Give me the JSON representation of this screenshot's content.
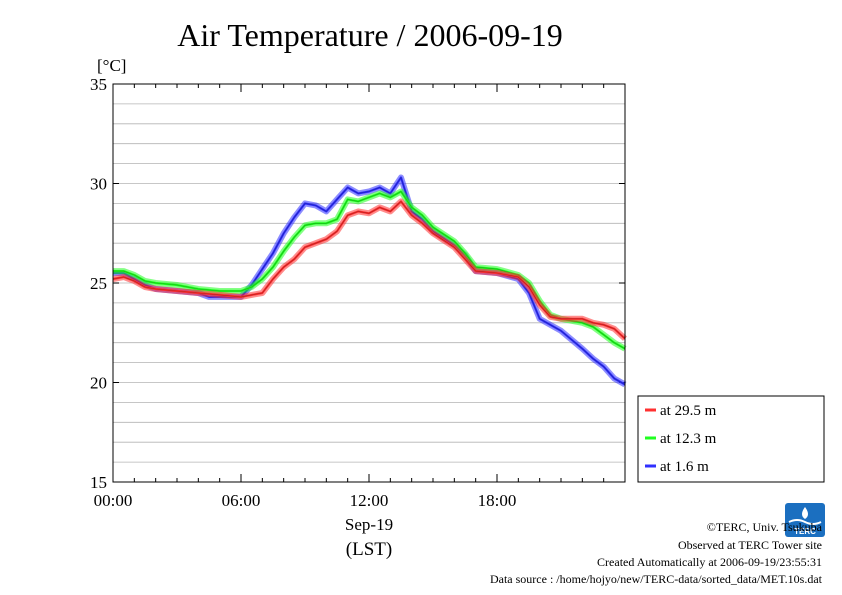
{
  "chart_data": {
    "type": "line",
    "title": "Air Temperature / 2006-09-19",
    "ylabel": "[°C]",
    "xlabel_date": "Sep-19",
    "xlabel_tz": "(LST)",
    "ylim": [
      15,
      35
    ],
    "xlim_hours": [
      0,
      24
    ],
    "yticks": [
      "15",
      "20",
      "25",
      "30",
      "35"
    ],
    "xticks": [
      "00:00",
      "06:00",
      "12:00",
      "18:00"
    ],
    "grid": true,
    "legend_position": "bottom-right outside",
    "series": [
      {
        "name": "at 29.5 m",
        "color": "#ff3030",
        "values": [
          [
            0,
            25.2
          ],
          [
            0.5,
            25.3
          ],
          [
            1,
            25.1
          ],
          [
            1.5,
            24.8
          ],
          [
            2,
            24.7
          ],
          [
            3,
            24.6
          ],
          [
            4,
            24.5
          ],
          [
            5,
            24.4
          ],
          [
            6,
            24.3
          ],
          [
            6.5,
            24.4
          ],
          [
            7,
            24.5
          ],
          [
            7.5,
            25.2
          ],
          [
            8,
            25.8
          ],
          [
            8.5,
            26.2
          ],
          [
            9,
            26.8
          ],
          [
            9.5,
            27.0
          ],
          [
            10,
            27.2
          ],
          [
            10.5,
            27.6
          ],
          [
            11,
            28.4
          ],
          [
            11.5,
            28.6
          ],
          [
            12,
            28.5
          ],
          [
            12.5,
            28.8
          ],
          [
            13,
            28.6
          ],
          [
            13.5,
            29.1
          ],
          [
            14,
            28.4
          ],
          [
            14.5,
            28.0
          ],
          [
            15,
            27.5
          ],
          [
            16,
            26.8
          ],
          [
            16.5,
            26.2
          ],
          [
            17,
            25.6
          ],
          [
            18,
            25.5
          ],
          [
            19,
            25.3
          ],
          [
            19.5,
            24.8
          ],
          [
            20,
            23.9
          ],
          [
            20.5,
            23.3
          ],
          [
            21,
            23.2
          ],
          [
            22,
            23.2
          ],
          [
            22.5,
            23.0
          ],
          [
            23,
            22.9
          ],
          [
            23.5,
            22.7
          ],
          [
            24,
            22.2
          ]
        ]
      },
      {
        "name": "at 12.3 m",
        "color": "#20ff20",
        "values": [
          [
            0,
            25.6
          ],
          [
            0.5,
            25.6
          ],
          [
            1,
            25.4
          ],
          [
            1.5,
            25.1
          ],
          [
            2,
            25.0
          ],
          [
            3,
            24.9
          ],
          [
            4,
            24.7
          ],
          [
            5,
            24.6
          ],
          [
            6,
            24.6
          ],
          [
            6.5,
            24.8
          ],
          [
            7,
            25.2
          ],
          [
            7.5,
            25.8
          ],
          [
            8,
            26.6
          ],
          [
            8.5,
            27.3
          ],
          [
            9,
            27.9
          ],
          [
            9.5,
            28.0
          ],
          [
            10,
            28.0
          ],
          [
            10.5,
            28.2
          ],
          [
            11,
            29.2
          ],
          [
            11.5,
            29.1
          ],
          [
            12,
            29.3
          ],
          [
            12.5,
            29.5
          ],
          [
            13,
            29.3
          ],
          [
            13.5,
            29.6
          ],
          [
            14,
            28.8
          ],
          [
            14.5,
            28.4
          ],
          [
            15,
            27.8
          ],
          [
            16,
            27.1
          ],
          [
            16.5,
            26.5
          ],
          [
            17,
            25.8
          ],
          [
            18,
            25.7
          ],
          [
            19,
            25.4
          ],
          [
            19.5,
            25.0
          ],
          [
            20,
            24.1
          ],
          [
            20.5,
            23.4
          ],
          [
            21,
            23.2
          ],
          [
            22,
            23.0
          ],
          [
            22.5,
            22.8
          ],
          [
            23,
            22.4
          ],
          [
            23.5,
            22.0
          ],
          [
            24,
            21.7
          ]
        ]
      },
      {
        "name": "at 1.6 m",
        "color": "#3030ff",
        "values": [
          [
            0,
            25.5
          ],
          [
            0.5,
            25.5
          ],
          [
            1,
            25.2
          ],
          [
            1.5,
            24.9
          ],
          [
            2,
            24.7
          ],
          [
            3,
            24.6
          ],
          [
            4,
            24.5
          ],
          [
            4.5,
            24.3
          ],
          [
            5,
            24.3
          ],
          [
            6,
            24.3
          ],
          [
            6.5,
            24.9
          ],
          [
            7,
            25.7
          ],
          [
            7.5,
            26.5
          ],
          [
            8,
            27.5
          ],
          [
            8.5,
            28.3
          ],
          [
            9,
            29.0
          ],
          [
            9.5,
            28.9
          ],
          [
            10,
            28.6
          ],
          [
            10.5,
            29.2
          ],
          [
            11,
            29.8
          ],
          [
            11.5,
            29.5
          ],
          [
            12,
            29.6
          ],
          [
            12.5,
            29.8
          ],
          [
            13,
            29.5
          ],
          [
            13.5,
            30.3
          ],
          [
            14,
            28.6
          ],
          [
            14.5,
            28.2
          ],
          [
            15,
            27.6
          ],
          [
            16,
            26.9
          ],
          [
            16.5,
            26.4
          ],
          [
            17,
            25.6
          ],
          [
            18,
            25.5
          ],
          [
            19,
            25.2
          ],
          [
            19.5,
            24.5
          ],
          [
            20,
            23.2
          ],
          [
            20.5,
            22.9
          ],
          [
            21,
            22.6
          ],
          [
            22,
            21.7
          ],
          [
            22.5,
            21.2
          ],
          [
            23,
            20.8
          ],
          [
            23.5,
            20.2
          ],
          [
            24,
            19.9
          ]
        ]
      }
    ]
  },
  "footer": {
    "credit": "©TERC, Univ. Tsukuba",
    "site": "Observed at TERC Tower site",
    "created": "Created Automatically at 2006-09-19/23:55:31",
    "source": "Data source : /home/hojyo/new/TERC-data/sorted_data/MET.10s.dat"
  },
  "logo": {
    "text": "TERC",
    "color": "#1b6fc0"
  }
}
